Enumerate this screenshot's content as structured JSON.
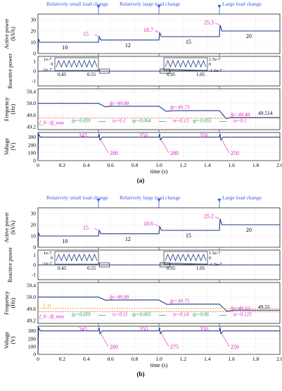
{
  "figure": {
    "panels": [
      {
        "caption": "(a)",
        "events": [
          "Relatively small load change",
          "Relatively large load change",
          "Large load change"
        ],
        "active": {
          "ylabel": "Active power\n(kVA)",
          "ticks": [
            "30",
            "20",
            "10",
            "0"
          ],
          "levels": [
            "10",
            "12",
            "15",
            "20"
          ],
          "peaks": [
            "15",
            "18.7",
            "25.3"
          ]
        },
        "reactive": {
          "ylabel": "Reactive power",
          "ticks": [
            "1",
            "0",
            "-1"
          ],
          "inset1": {
            "ticks": [
              "1e-7",
              "0",
              "-1e-7"
            ],
            "xticks": [
              "0.45",
              "0.55"
            ]
          },
          "inset2": {
            "ticks": [
              "1.5e-7",
              "0",
              "-1.5e-7"
            ],
            "xticks": [
              "0.95",
              "1.05"
            ]
          }
        },
        "frequency": {
          "ylabel": "Frequency\n(Hz)",
          "ticks": [
            "50.4",
            "50.0",
            "49.6",
            "49.2"
          ],
          "fp": [
            "f_p=49.88",
            "f_p=49.73",
            "f_p=49.48"
          ],
          "tp": [
            "t_p=0.059",
            "t_p=0.064",
            "t_p=0.055"
          ],
          "ts": [
            "t_s=0.1",
            "t_s=0.13",
            "t_s=0.1"
          ],
          "final": "49.514",
          "limit": "f_N−Δf_max"
        },
        "voltage": {
          "ylabel": "Voltage\n(V)",
          "ticks": [
            "300",
            "200",
            "100",
            "0"
          ],
          "peaks": [
            "345",
            "350",
            "350"
          ],
          "dips": [
            "280",
            "280",
            "250"
          ]
        },
        "xaxis": {
          "ticks": [
            "0",
            "0.2",
            "0.4",
            "0.6",
            "0.8",
            "1.0",
            "1.2",
            "1.4",
            "1.6",
            "1.8",
            "2.0"
          ],
          "label": "time (s)"
        }
      },
      {
        "caption": "(b)",
        "events": [
          "Relatively small load change",
          "Relatively large load change",
          "Large load change"
        ],
        "active": {
          "ylabel": "Active power\n(kVA)",
          "ticks": [
            "30",
            "20",
            "10",
            "0"
          ],
          "levels": [
            "10",
            "12",
            "15",
            "20"
          ],
          "peaks": [
            "15",
            "18.6",
            "25.2"
          ]
        },
        "reactive": {
          "ylabel": "Reactive power",
          "ticks": [
            "1",
            "0",
            "-1"
          ],
          "inset1": {
            "ticks": [
              "1e-7",
              "0",
              "-1e-7"
            ],
            "xticks": [
              "0.45",
              "0.55"
            ]
          },
          "inset2": {
            "ticks": [
              "1.5e-7",
              "0",
              "-1.5e-7"
            ],
            "xticks": [
              "0.95",
              "1.05"
            ]
          }
        },
        "frequency": {
          "ylabel": "Frequency\n(Hz)",
          "ticks": [
            "50.4",
            "50.0",
            "49.6",
            "49.2"
          ],
          "fp": [
            "f_p=49.89",
            "f_p=49.75",
            "f_p=49.52"
          ],
          "tp": [
            "t_p=0.059",
            "t_p=0.065",
            "t_p=0.06"
          ],
          "ts": [
            "t_s=0.11",
            "t_s=0.14",
            "t_s=0.125"
          ],
          "final": "49.55",
          "limit": "f_N−Δf_max",
          "extra": "f_ss"
        },
        "voltage": {
          "ylabel": "Voltage\n(V)",
          "ticks": [
            "300",
            "200",
            "100",
            "0"
          ],
          "peaks": [
            "345",
            "350",
            "350"
          ],
          "dips": [
            "280",
            "275",
            "250"
          ]
        },
        "xaxis": {
          "ticks": [
            "0",
            "0.2",
            "0.4",
            "0.6",
            "0.8",
            "1.0",
            "1.2",
            "1.4",
            "1.6",
            "1.8",
            "2.0"
          ],
          "label": "time (s)"
        }
      }
    ]
  },
  "chart_data": [
    {
      "type": "line",
      "title": "(a)",
      "subplots": [
        {
          "ylabel": "Active power (kVA)",
          "ylim": [
            0,
            35
          ],
          "series": [
            {
              "x": [
                0,
                0.5,
                1.0,
                1.5,
                2.0
              ],
              "y": [
                10,
                12,
                15,
                20,
                20
              ]
            }
          ]
        },
        {
          "ylabel": "Reactive power",
          "ylim": [
            -1.5,
            1.5
          ],
          "series": [
            {
              "x": [
                0,
                2.0
              ],
              "y": [
                0,
                0
              ]
            }
          ]
        },
        {
          "ylabel": "Frequency (Hz)",
          "ylim": [
            49.1,
            50.5
          ],
          "series": [
            {
              "x": [
                0,
                0.5,
                0.56,
                0.6,
                1.0,
                1.06,
                1.13,
                1.5,
                1.555,
                1.6,
                2.0
              ],
              "y": [
                50.0,
                50.0,
                49.88,
                49.9,
                49.9,
                49.73,
                49.75,
                49.75,
                49.48,
                49.514,
                49.514
              ]
            }
          ]
        },
        {
          "ylabel": "Voltage (V)",
          "ylim": [
            0,
            360
          ],
          "series": [
            {
              "x": [
                0,
                0.5,
                1.0,
                1.5,
                2.0
              ],
              "y": [
                300,
                300,
                300,
                300,
                300
              ]
            }
          ]
        }
      ],
      "xlabel": "time (s)",
      "xlim": [
        0,
        2.0
      ]
    },
    {
      "type": "line",
      "title": "(b)",
      "subplots": [
        {
          "ylabel": "Active power (kVA)",
          "ylim": [
            0,
            35
          ],
          "series": [
            {
              "x": [
                0,
                0.5,
                1.0,
                1.5,
                2.0
              ],
              "y": [
                10,
                12,
                15,
                20,
                20
              ]
            }
          ]
        },
        {
          "ylabel": "Reactive power",
          "ylim": [
            -1.5,
            1.5
          ],
          "series": [
            {
              "x": [
                0,
                2.0
              ],
              "y": [
                0,
                0
              ]
            }
          ]
        },
        {
          "ylabel": "Frequency (Hz)",
          "ylim": [
            49.1,
            50.5
          ],
          "series": [
            {
              "x": [
                0,
                0.5,
                0.56,
                0.6,
                1.0,
                1.065,
                1.14,
                1.5,
                1.56,
                1.625,
                2.0
              ],
              "y": [
                50.0,
                50.0,
                49.89,
                49.9,
                49.9,
                49.75,
                49.76,
                49.76,
                49.52,
                49.55,
                49.55
              ]
            }
          ]
        },
        {
          "ylabel": "Voltage (V)",
          "ylim": [
            0,
            360
          ],
          "series": [
            {
              "x": [
                0,
                0.5,
                1.0,
                1.5,
                2.0
              ],
              "y": [
                300,
                300,
                300,
                300,
                300
              ]
            }
          ]
        }
      ],
      "xlabel": "time (s)",
      "xlim": [
        0,
        2.0
      ]
    }
  ],
  "colors": {
    "trace": "#1f3a8a",
    "annot": "#e020c0",
    "green": "#16a34a",
    "red": "#dc2626",
    "blue_event": "#3b5bdb",
    "orange": "#f59e0b"
  }
}
